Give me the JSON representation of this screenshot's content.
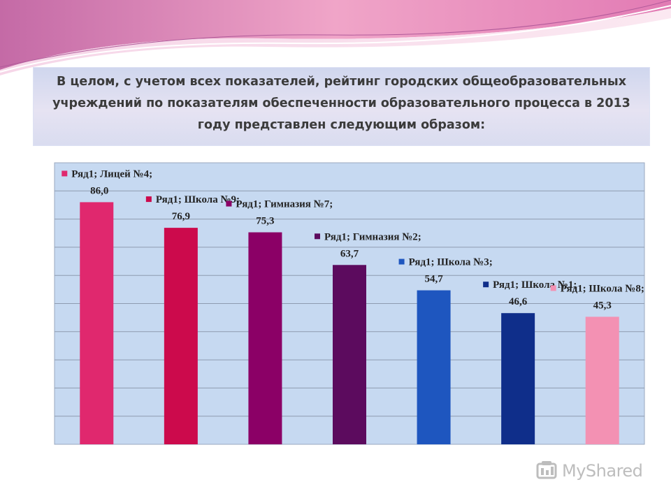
{
  "slide": {
    "title": "В целом, с учетом всех показателей, рейтинг городских общеобразовательных учреждений  по показателям обеспеченности образовательного процесса в 2013 году представлен следующим образом:",
    "watermark": "MyShared"
  },
  "chart_data": {
    "type": "bar",
    "categories": [
      "Лицей №4",
      "Школа №9",
      "Гимназия №7",
      "Гимназия №2",
      "Школа №3",
      "Школа №1",
      "Школа №8"
    ],
    "series": [
      {
        "name": "Ряд1",
        "values": [
          86.0,
          76.9,
          75.3,
          63.7,
          54.7,
          46.6,
          45.3
        ],
        "value_labels": [
          "86,0",
          "76,9",
          "75,3",
          "63,7",
          "54,7",
          "46,6",
          "45,3"
        ],
        "colors": [
          "#e0286e",
          "#cc0a4c",
          "#8b0066",
          "#5c0b5e",
          "#1e56bf",
          "#0f2e8a",
          "#f391b3"
        ]
      }
    ],
    "point_labels": [
      "Ряд1; Лицей №4;",
      "Ряд1; Школа №9;",
      "Ряд1; Гимназия №7;",
      "Ряд1; Гимназия №2;",
      "Ряд1; Школа №3;",
      "Ряд1; Школа №1;",
      "Ряд1; Школа №8;"
    ],
    "ylim": [
      0,
      100
    ],
    "grid": true,
    "plot_background": "#c6d9f1",
    "xlabel": "",
    "ylabel": ""
  }
}
